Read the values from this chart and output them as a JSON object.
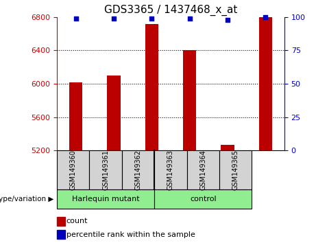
{
  "title": "GDS3365 / 1437468_x_at",
  "samples": [
    "GSM149360",
    "GSM149361",
    "GSM149362",
    "GSM149363",
    "GSM149364",
    "GSM149365"
  ],
  "counts": [
    6020,
    6100,
    6720,
    6400,
    5270,
    6800
  ],
  "percentiles": [
    99,
    99,
    99,
    99,
    98,
    100
  ],
  "ylim": [
    5200,
    6800
  ],
  "yticks": [
    5200,
    5600,
    6000,
    6400,
    6800
  ],
  "right_ylim": [
    0,
    100
  ],
  "right_yticks": [
    0,
    25,
    50,
    75,
    100
  ],
  "bar_color": "#bb0000",
  "dot_color": "#0000bb",
  "group1_label": "Harlequin mutant",
  "group2_label": "control",
  "group_color": "#90ee90",
  "genotype_label": "genotype/variation",
  "legend_count_label": "count",
  "legend_percentile_label": "percentile rank within the sample",
  "title_fontsize": 11,
  "tick_fontsize": 8,
  "left_tick_color": "#cc0000",
  "right_tick_color": "#0000cc",
  "background_color": "#ffffff",
  "grid_color": "#000000",
  "xticklabel_box_color": "#d3d3d3",
  "grid_yticks": [
    5600,
    6000,
    6400
  ]
}
